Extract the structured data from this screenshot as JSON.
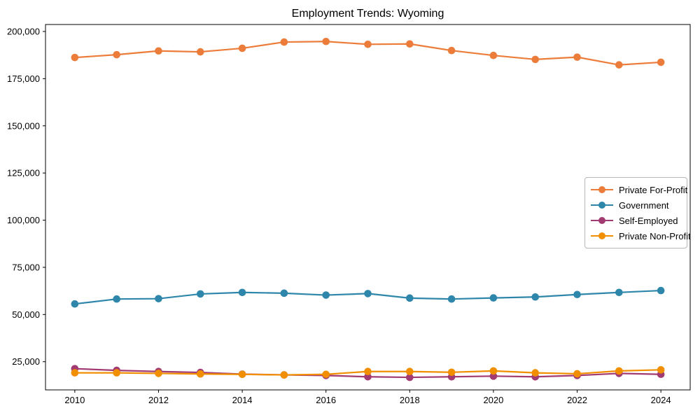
{
  "chart_data": {
    "type": "line",
    "title": "Employment Trends: Wyoming",
    "xlabel": "",
    "ylabel": "",
    "grid": false,
    "legend_position": "center right",
    "x": [
      2010,
      2011,
      2012,
      2013,
      2014,
      2015,
      2016,
      2017,
      2018,
      2019,
      2020,
      2021,
      2022,
      2023,
      2024
    ],
    "series": [
      {
        "name": "Private For-Profit",
        "color": "#ec7c3a",
        "values": [
          186200,
          187700,
          189700,
          189200,
          191100,
          194400,
          194700,
          193200,
          193400,
          189900,
          187300,
          185200,
          186400,
          182300,
          183700
        ]
      },
      {
        "name": "Government",
        "color": "#2e86ab",
        "values": [
          55600,
          58200,
          58400,
          60900,
          61700,
          61300,
          60300,
          61100,
          58700,
          58200,
          58800,
          59300,
          60600,
          61700,
          62700
        ]
      },
      {
        "name": "Self-Employed",
        "color": "#a23b72",
        "values": [
          21300,
          20400,
          19800,
          19300,
          18400,
          18000,
          17700,
          17000,
          16700,
          17000,
          17350,
          17000,
          17700,
          18800,
          18300
        ]
      },
      {
        "name": "Private Non-Profit",
        "color": "#f18f01",
        "values": [
          19100,
          19100,
          18800,
          18500,
          18300,
          18000,
          18300,
          19800,
          19800,
          19400,
          20100,
          19100,
          18600,
          20100,
          20700
        ]
      }
    ],
    "xlim": [
      2009.3,
      2024.7
    ],
    "ylim": [
      10050,
      203700
    ],
    "xticks": {
      "values": [
        2010,
        2012,
        2014,
        2016,
        2018,
        2020,
        2022,
        2024
      ],
      "labels": [
        "2010",
        "2012",
        "2014",
        "2016",
        "2018",
        "2020",
        "2022",
        "2024"
      ]
    },
    "yticks": {
      "values": [
        25000,
        50000,
        75000,
        100000,
        125000,
        150000,
        175000,
        200000
      ],
      "labels": [
        "25,000",
        "50,000",
        "75,000",
        "100,000",
        "125,000",
        "150,000",
        "175,000",
        "200,000"
      ]
    }
  }
}
